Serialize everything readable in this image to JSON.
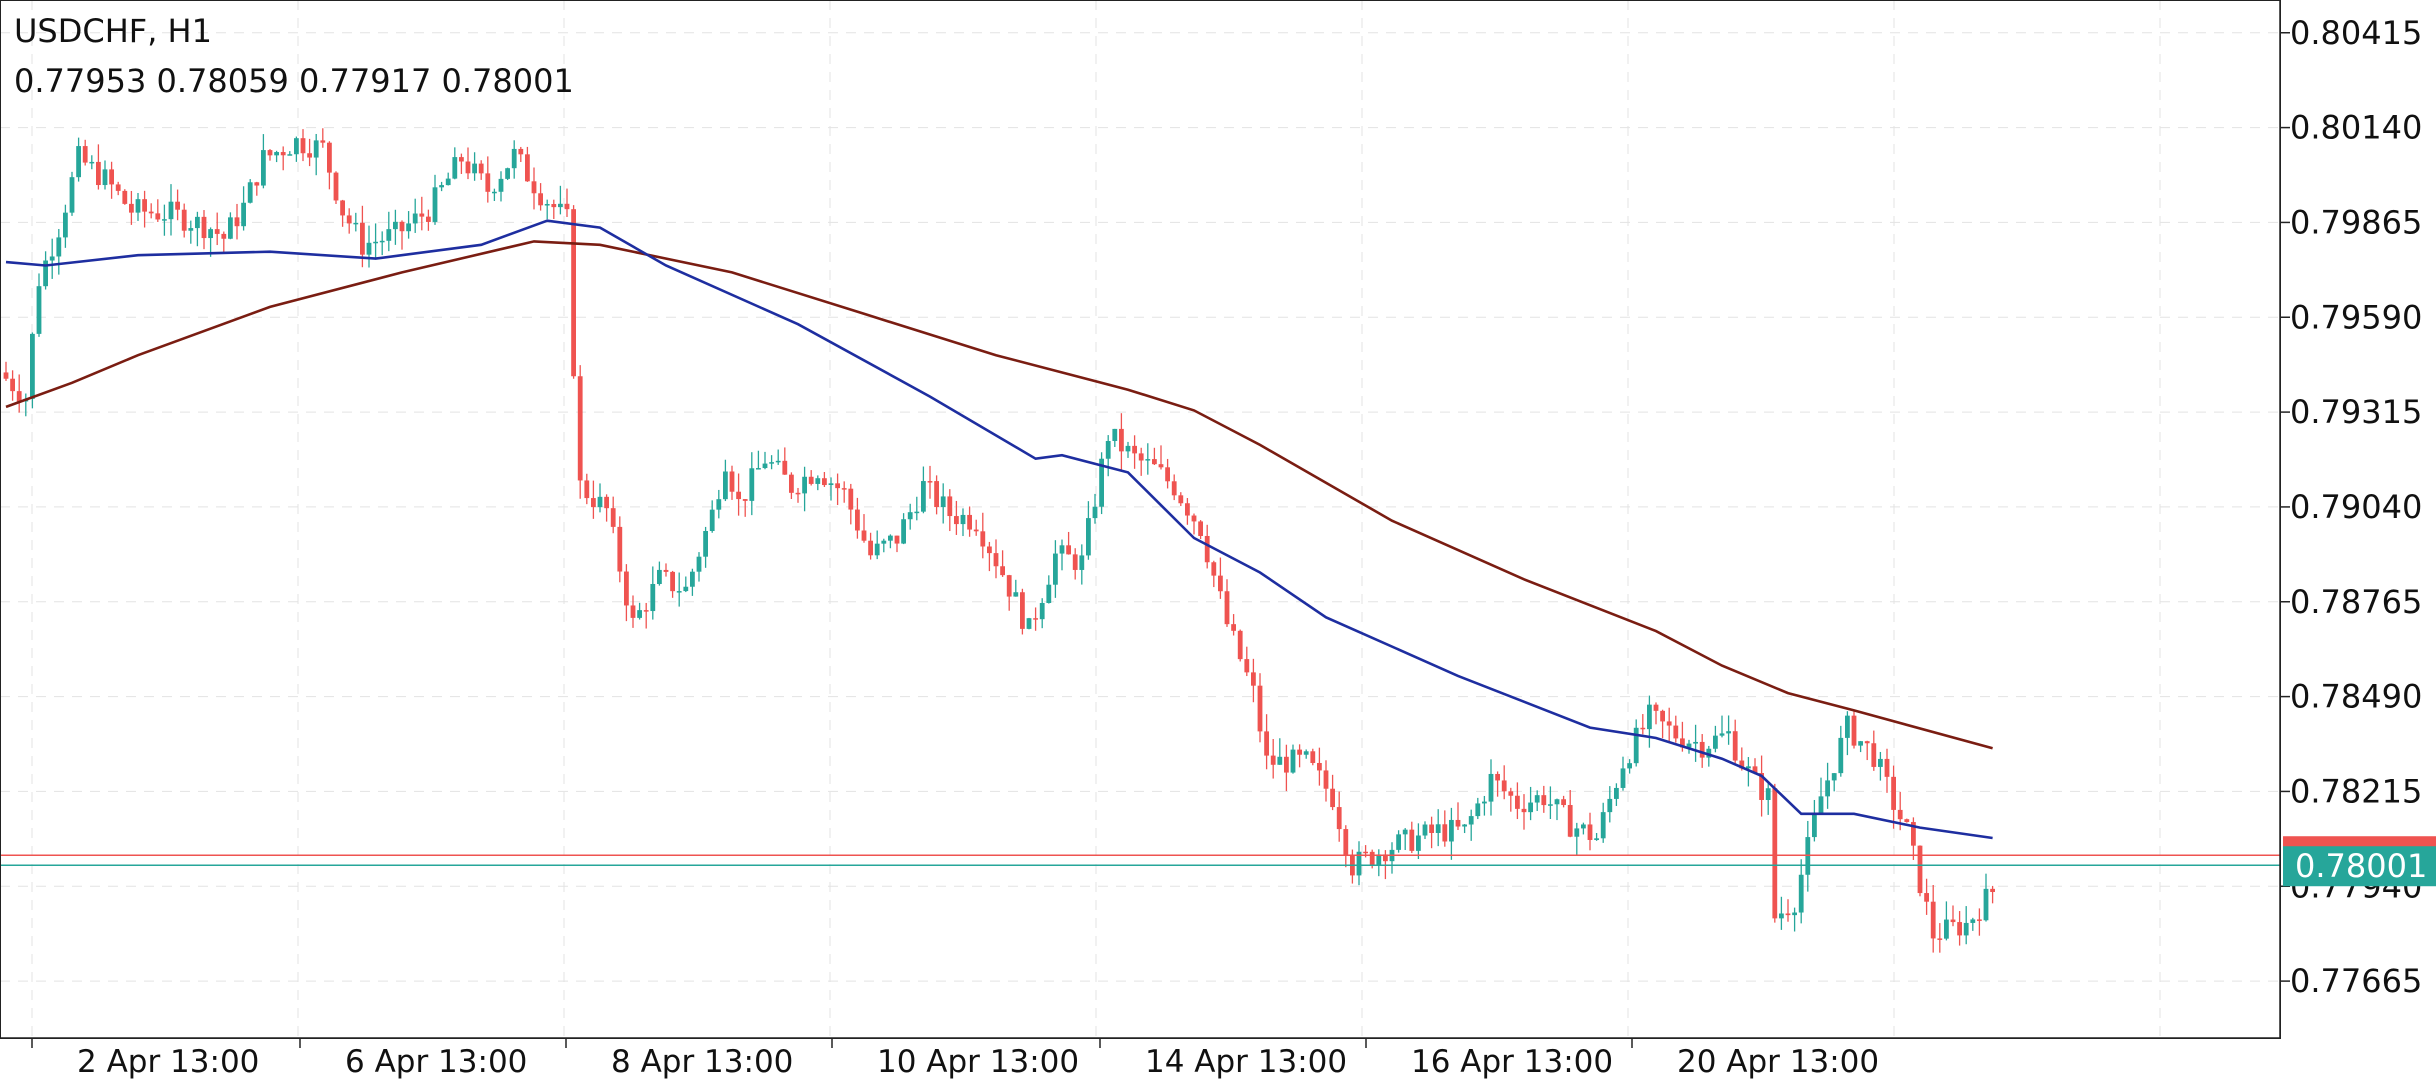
{
  "header": {
    "symbol_timeframe": "USDCHF, H1",
    "ohlc": "0.77953 0.78059 0.77917 0.78001"
  },
  "chart_data": {
    "type": "candlestick",
    "symbol": "USDCHF",
    "timeframe": "H1",
    "y_axis": {
      "ticks": [
        "0.80415",
        "0.80140",
        "0.79865",
        "0.79590",
        "0.79315",
        "0.79040",
        "0.78765",
        "0.78490",
        "0.78215",
        "0.77940",
        "0.77665"
      ],
      "range": [
        0.775,
        0.8051
      ]
    },
    "x_axis": {
      "ticks": [
        "2 Apr 13:00",
        "6 Apr 13:00",
        "8 Apr 13:00",
        "10 Apr 13:00",
        "14 Apr 13:00",
        "16 Apr 13:00",
        "20 Apr 13:00"
      ],
      "bar_count": 302
    },
    "price_path": [
      [
        0,
        0.7943
      ],
      [
        4,
        0.7936
      ],
      [
        6,
        0.797
      ],
      [
        9,
        0.7985
      ],
      [
        12,
        0.8005
      ],
      [
        16,
        0.7999
      ],
      [
        20,
        0.799
      ],
      [
        26,
        0.7989
      ],
      [
        32,
        0.7985
      ],
      [
        34,
        0.7982
      ],
      [
        37,
        0.7991
      ],
      [
        40,
        0.8005
      ],
      [
        45,
        0.801
      ],
      [
        49,
        0.8008
      ],
      [
        52,
        0.799
      ],
      [
        55,
        0.798
      ],
      [
        60,
        0.7983
      ],
      [
        65,
        0.799
      ],
      [
        70,
        0.8005
      ],
      [
        74,
        0.7996
      ],
      [
        78,
        0.8006
      ],
      [
        82,
        0.7995
      ],
      [
        86,
        0.7987
      ],
      [
        87,
        0.7945
      ],
      [
        88,
        0.791
      ],
      [
        92,
        0.7903
      ],
      [
        96,
        0.787
      ],
      [
        100,
        0.7883
      ],
      [
        104,
        0.788
      ],
      [
        108,
        0.7902
      ],
      [
        110,
        0.7918
      ],
      [
        112,
        0.7905
      ],
      [
        116,
        0.7918
      ],
      [
        120,
        0.791
      ],
      [
        124,
        0.7915
      ],
      [
        128,
        0.7908
      ],
      [
        132,
        0.789
      ],
      [
        136,
        0.7895
      ],
      [
        140,
        0.791
      ],
      [
        144,
        0.7902
      ],
      [
        148,
        0.79
      ],
      [
        152,
        0.7885
      ],
      [
        156,
        0.7868
      ],
      [
        160,
        0.789
      ],
      [
        164,
        0.7888
      ],
      [
        168,
        0.7925
      ],
      [
        172,
        0.7918
      ],
      [
        175,
        0.7915
      ],
      [
        178,
        0.791
      ],
      [
        182,
        0.7898
      ],
      [
        186,
        0.787
      ],
      [
        190,
        0.785
      ],
      [
        192,
        0.783
      ],
      [
        198,
        0.783
      ],
      [
        202,
        0.782
      ],
      [
        205,
        0.78
      ],
      [
        210,
        0.7805
      ],
      [
        218,
        0.781
      ],
      [
        222,
        0.781
      ],
      [
        226,
        0.7825
      ],
      [
        230,
        0.7818
      ],
      [
        234,
        0.782
      ],
      [
        238,
        0.7812
      ],
      [
        242,
        0.7808
      ],
      [
        246,
        0.783
      ],
      [
        250,
        0.7843
      ],
      [
        254,
        0.7838
      ],
      [
        258,
        0.7835
      ],
      [
        262,
        0.7838
      ],
      [
        264,
        0.783
      ],
      [
        266,
        0.7824
      ],
      [
        268,
        0.782
      ],
      [
        269,
        0.7785
      ],
      [
        272,
        0.779
      ],
      [
        276,
        0.782
      ],
      [
        280,
        0.784
      ],
      [
        284,
        0.7832
      ],
      [
        287,
        0.7818
      ],
      [
        289,
        0.781
      ],
      [
        293,
        0.778
      ],
      [
        298,
        0.7783
      ],
      [
        303,
        0.7795
      ],
      [
        306,
        0.7803
      ],
      [
        308,
        0.78
      ]
    ],
    "ma_fast": [
      [
        0,
        0.7975
      ],
      [
        6,
        0.7974
      ],
      [
        20,
        0.7977
      ],
      [
        40,
        0.7978
      ],
      [
        56,
        0.7976
      ],
      [
        72,
        0.798
      ],
      [
        82,
        0.7987
      ],
      [
        90,
        0.7985
      ],
      [
        100,
        0.7974
      ],
      [
        120,
        0.7957
      ],
      [
        140,
        0.7936
      ],
      [
        156,
        0.7918
      ],
      [
        160,
        0.7919
      ],
      [
        170,
        0.7914
      ],
      [
        180,
        0.7895
      ],
      [
        190,
        0.7885
      ],
      [
        200,
        0.7872
      ],
      [
        220,
        0.7855
      ],
      [
        240,
        0.784
      ],
      [
        250,
        0.7837
      ],
      [
        260,
        0.7831
      ],
      [
        266,
        0.7826
      ],
      [
        272,
        0.7815
      ],
      [
        280,
        0.7815
      ],
      [
        290,
        0.7811
      ],
      [
        302,
        0.7808
      ]
    ],
    "ma_slow": [
      [
        0,
        0.7933
      ],
      [
        10,
        0.794
      ],
      [
        20,
        0.7948
      ],
      [
        40,
        0.7962
      ],
      [
        60,
        0.7972
      ],
      [
        80,
        0.7981
      ],
      [
        90,
        0.798
      ],
      [
        110,
        0.7972
      ],
      [
        130,
        0.796
      ],
      [
        150,
        0.7948
      ],
      [
        170,
        0.7938
      ],
      [
        180,
        0.7932
      ],
      [
        190,
        0.7922
      ],
      [
        210,
        0.79
      ],
      [
        230,
        0.7883
      ],
      [
        250,
        0.7868
      ],
      [
        260,
        0.7858
      ],
      [
        270,
        0.785
      ],
      [
        280,
        0.7845
      ],
      [
        302,
        0.7834
      ]
    ],
    "current_price": "0.78001",
    "ask_line": 0.7803,
    "colors": {
      "bull": "#26a69a",
      "bear": "#ef5350",
      "ma_fast": "#1e2ea0",
      "ma_slow": "#7a1d12",
      "price_label_bg": "#26a69a",
      "ask_label_bg": "#ef5350",
      "grid": "#e3e3e3",
      "axis": "#222222"
    }
  }
}
